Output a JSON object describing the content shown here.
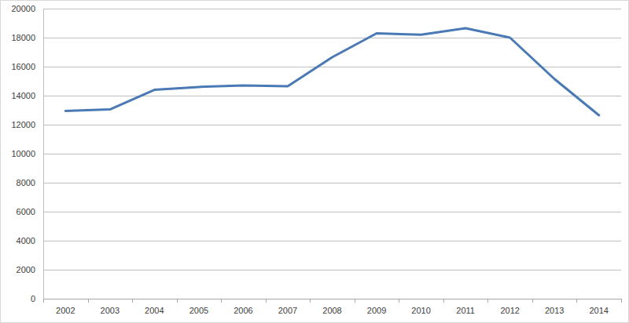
{
  "chart_data": {
    "type": "line",
    "categories": [
      "2002",
      "2003",
      "2004",
      "2005",
      "2006",
      "2007",
      "2008",
      "2009",
      "2010",
      "2011",
      "2012",
      "2013",
      "2014"
    ],
    "values": [
      12950,
      13050,
      14400,
      14600,
      14700,
      14650,
      16650,
      18300,
      18200,
      18650,
      18000,
      15150,
      12650
    ],
    "color": "#4a7ab5",
    "ylim": [
      0,
      20000
    ],
    "yticks": [
      0,
      2000,
      4000,
      6000,
      8000,
      10000,
      12000,
      14000,
      16000,
      18000,
      20000
    ],
    "grid": true
  }
}
